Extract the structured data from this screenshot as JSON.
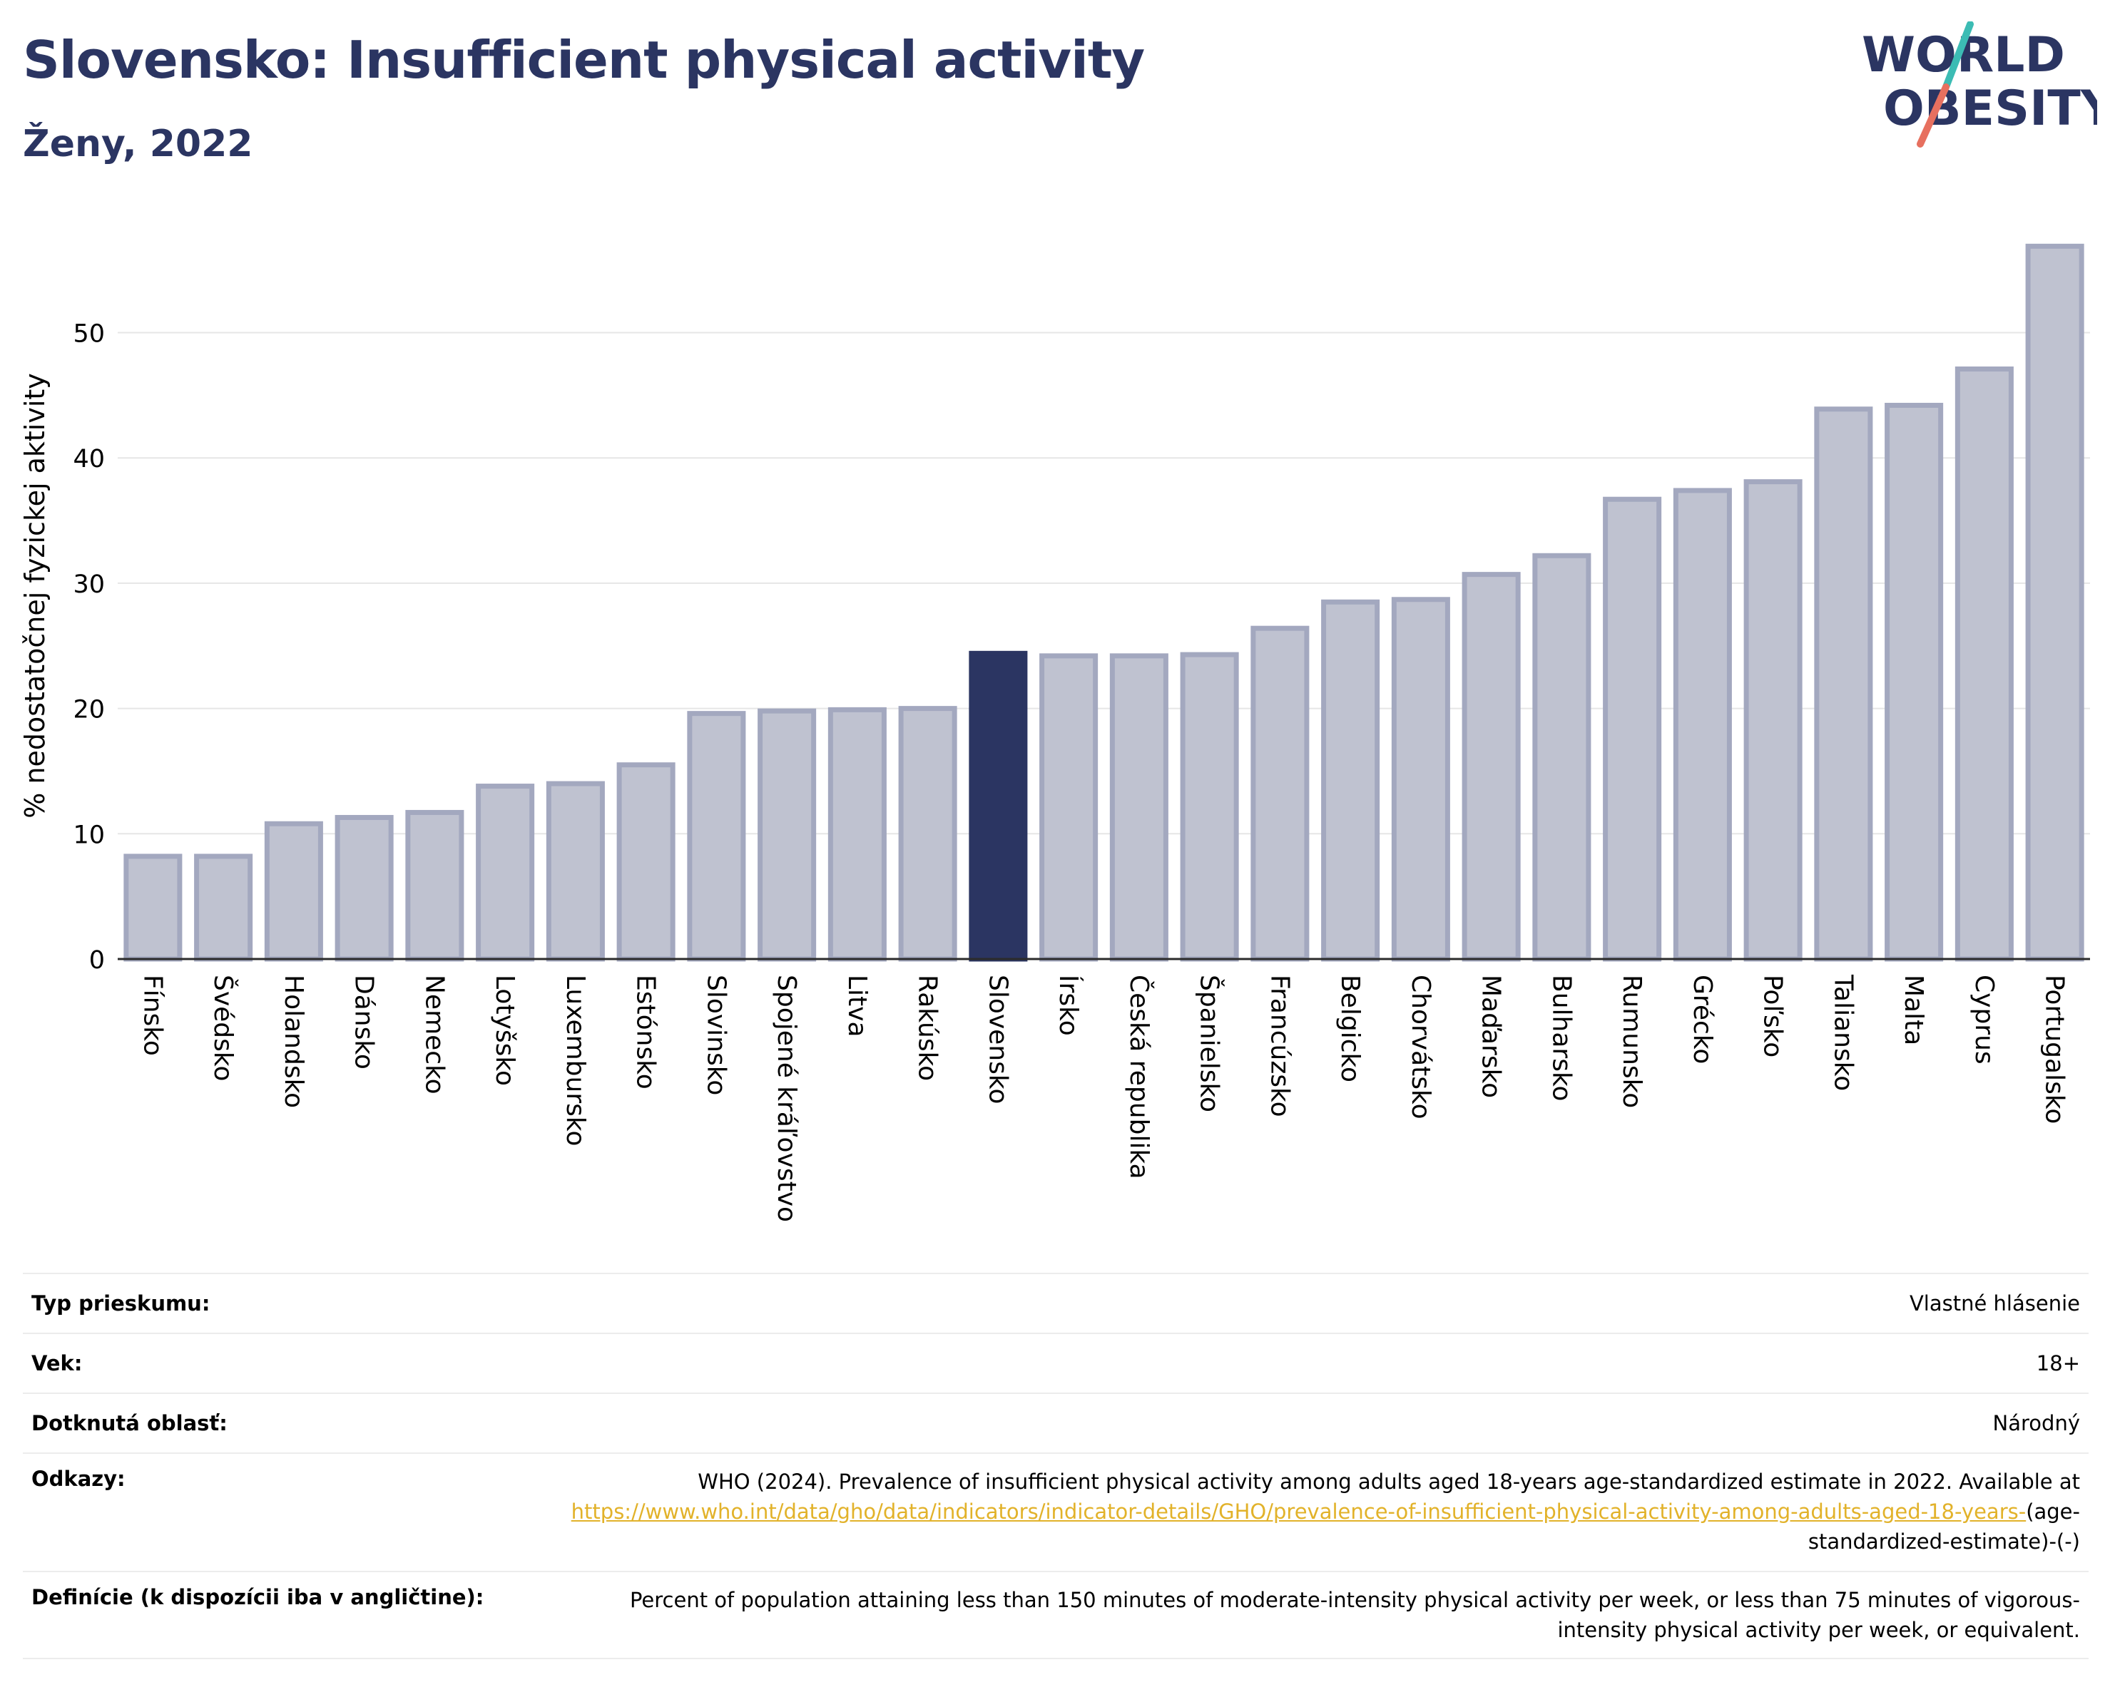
{
  "header": {
    "title": "Slovensko: Insufficient physical activity",
    "subtitle": "Ženy, 2022",
    "logo_text_line1": "WORLD",
    "logo_text_line2": "OBESITY"
  },
  "colors": {
    "bar": "#bfc2d0",
    "bar_stroke": "#a3a8bf",
    "highlight": "#2b3562",
    "title": "#2b3562",
    "link": "#e2b22a",
    "logo_teal": "#3cbcb4",
    "logo_coral": "#e7705f"
  },
  "chart_data": {
    "type": "bar",
    "title": "Slovensko: Insufficient physical activity",
    "subtitle": "Ženy, 2022",
    "xlabel": "",
    "ylabel": "% nedostatočnej fyzickej aktivity",
    "ylim": [
      0,
      58
    ],
    "yticks": [
      0,
      10,
      20,
      30,
      40,
      50
    ],
    "grid": true,
    "highlight_category": "Slovensko",
    "categories": [
      "Fínsko",
      "Švédsko",
      "Holandsko",
      "Dánsko",
      "Nemecko",
      "Lotyšsko",
      "Luxembursko",
      "Estónsko",
      "Slovinsko",
      "Spojené kráľovstvo",
      "Litva",
      "Rakúsko",
      "Slovensko",
      "Írsko",
      "Česká republika",
      "Španielsko",
      "Francúzsko",
      "Belgicko",
      "Chorvátsko",
      "Maďarsko",
      "Bulharsko",
      "Rumunsko",
      "Grécko",
      "Poľsko",
      "Taliansko",
      "Malta",
      "Cyprus",
      "Portugalsko"
    ],
    "values": [
      8.2,
      8.2,
      10.8,
      11.3,
      11.7,
      13.8,
      14.0,
      15.5,
      19.6,
      19.8,
      19.9,
      20.0,
      24.4,
      24.2,
      24.2,
      24.3,
      26.4,
      28.5,
      28.7,
      30.7,
      32.2,
      36.7,
      37.4,
      38.1,
      43.9,
      44.2,
      47.1,
      56.9
    ]
  },
  "meta": {
    "rows": [
      {
        "label": "Typ prieskumu:",
        "value": "Vlastné hlásenie"
      },
      {
        "label": "Vek:",
        "value": "18+"
      },
      {
        "label": "Dotknutá oblasť:",
        "value": "Národný"
      }
    ],
    "references": {
      "label": "Odkazy:",
      "text": "WHO (2024). Prevalence of insufficient physical activity among adults aged 18-years age-standardized estimate in 2022. Available at",
      "link": "https://www.who.int/data/gho/data/indicators/indicator-details/GHO/prevalence-of-insufficient-physical-activity-among-adults-aged-18-years-",
      "suffix": "(age-standardized-estimate)-(-)"
    },
    "definition": {
      "label": "Definície (k dispozícii iba v angličtine):",
      "text": "Percent of population attaining less than 150 minutes of moderate-intensity physical activity per week, or less than 75 minutes of vigorous-intensity physical activity per week, or equivalent."
    }
  }
}
